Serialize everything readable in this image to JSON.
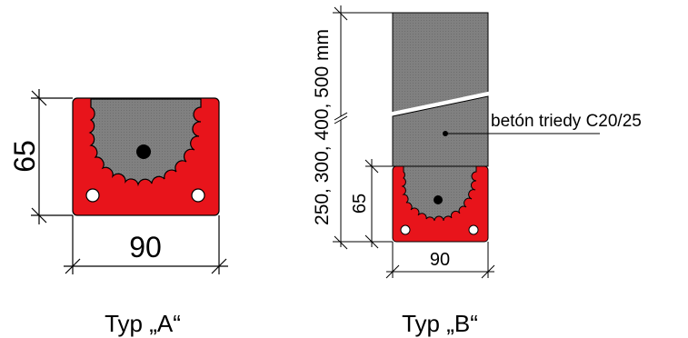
{
  "type_a": {
    "height_label": "65",
    "width_label": "90",
    "caption": "Typ „A“"
  },
  "type_b": {
    "total_height_label": "250, 300, 400, 500 mm",
    "height_label": "65",
    "width_label": "90",
    "concrete_label": "betón triedy C20/25",
    "caption": "Typ „B“"
  },
  "colors": {
    "profile_red": "#e8141b",
    "concrete_gray": "#808080",
    "hole_white": "#ffffff",
    "rebar_black": "#000000"
  }
}
